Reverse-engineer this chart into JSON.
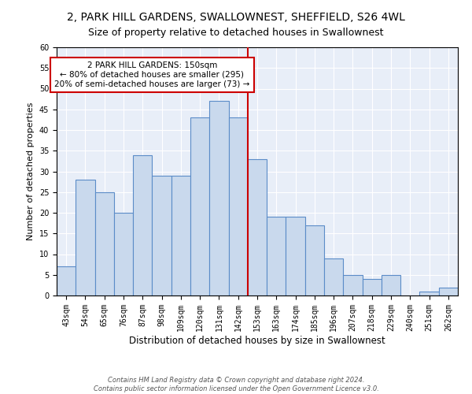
{
  "title": "2, PARK HILL GARDENS, SWALLOWNEST, SHEFFIELD, S26 4WL",
  "subtitle": "Size of property relative to detached houses in Swallownest",
  "xlabel": "Distribution of detached houses by size in Swallownest",
  "ylabel": "Number of detached properties",
  "bar_labels": [
    "43sqm",
    "54sqm",
    "65sqm",
    "76sqm",
    "87sqm",
    "98sqm",
    "109sqm",
    "120sqm",
    "131sqm",
    "142sqm",
    "153sqm",
    "163sqm",
    "174sqm",
    "185sqm",
    "196sqm",
    "207sqm",
    "218sqm",
    "229sqm",
    "240sqm",
    "251sqm",
    "262sqm"
  ],
  "bar_values": [
    7,
    28,
    25,
    20,
    34,
    29,
    29,
    43,
    47,
    43,
    33,
    19,
    19,
    17,
    9,
    5,
    4,
    5,
    0,
    1,
    2
  ],
  "bar_color": "#c9d9ed",
  "bar_edgecolor": "#5b8cc8",
  "vline_index": 9.5,
  "vline_color": "#cc0000",
  "ylim": [
    0,
    60
  ],
  "yticks": [
    0,
    5,
    10,
    15,
    20,
    25,
    30,
    35,
    40,
    45,
    50,
    55,
    60
  ],
  "annotation_title": "2 PARK HILL GARDENS: 150sqm",
  "annotation_line1": "← 80% of detached houses are smaller (295)",
  "annotation_line2": "20% of semi-detached houses are larger (73) →",
  "annotation_box_color": "#ffffff",
  "annotation_box_edgecolor": "#cc0000",
  "footer_line1": "Contains HM Land Registry data © Crown copyright and database right 2024.",
  "footer_line2": "Contains public sector information licensed under the Open Government Licence v3.0.",
  "bg_color": "#e8eef8",
  "title_fontsize": 10,
  "subtitle_fontsize": 9,
  "ylabel_fontsize": 8,
  "xlabel_fontsize": 8.5,
  "tick_fontsize": 7,
  "annotation_fontsize": 7.5,
  "footer_fontsize": 6
}
